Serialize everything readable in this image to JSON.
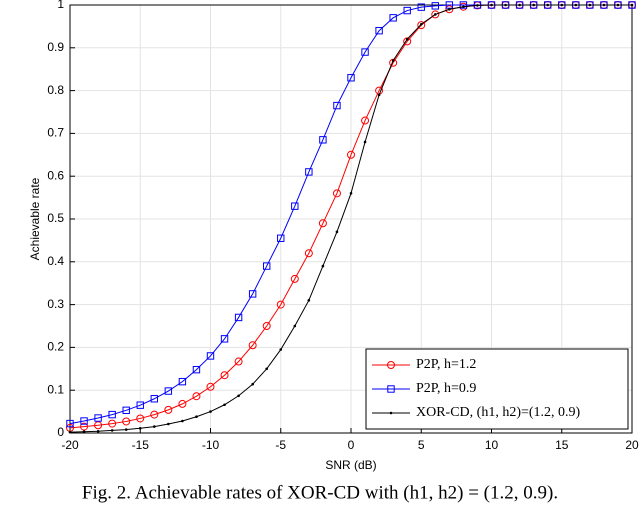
{
  "chart_data": {
    "type": "line",
    "xlabel": "SNR (dB)",
    "ylabel": "Achievable rate",
    "caption": "Fig. 2.  Achievable rates of XOR-CD with (h1, h2) = (1.2, 0.9).",
    "x": [
      -20,
      -19,
      -18,
      -17,
      -16,
      -15,
      -14,
      -13,
      -12,
      -11,
      -10,
      -9,
      -8,
      -7,
      -6,
      -5,
      -4,
      -3,
      -2,
      -1,
      0,
      1,
      2,
      3,
      4,
      5,
      6,
      7,
      8,
      9,
      10,
      11,
      12,
      13,
      14,
      15,
      16,
      17,
      18,
      19,
      20
    ],
    "series": [
      {
        "name": "P2P, h=1.2",
        "color": "#ff0000",
        "marker": "circle",
        "values": [
          0.012,
          0.015,
          0.018,
          0.022,
          0.027,
          0.034,
          0.043,
          0.054,
          0.068,
          0.086,
          0.108,
          0.135,
          0.167,
          0.205,
          0.25,
          0.3,
          0.36,
          0.42,
          0.49,
          0.56,
          0.65,
          0.73,
          0.8,
          0.865,
          0.915,
          0.953,
          0.978,
          0.99,
          0.996,
          0.999,
          1,
          1,
          1,
          1,
          1,
          1,
          1,
          1,
          1,
          1,
          1
        ]
      },
      {
        "name": "P2P, h=0.9",
        "color": "#0000ff",
        "marker": "square",
        "values": [
          0.022,
          0.028,
          0.035,
          0.043,
          0.053,
          0.065,
          0.08,
          0.098,
          0.12,
          0.148,
          0.18,
          0.22,
          0.27,
          0.325,
          0.39,
          0.455,
          0.53,
          0.61,
          0.685,
          0.765,
          0.83,
          0.89,
          0.94,
          0.97,
          0.987,
          0.995,
          0.998,
          1,
          1,
          1,
          1,
          1,
          1,
          1,
          1,
          1,
          1,
          1,
          1,
          1,
          1
        ]
      },
      {
        "name": "XOR-CD, (h1, h2)=(1.2, 0.9)",
        "color": "#000000",
        "marker": "dot",
        "values": [
          0.002,
          0.003,
          0.004,
          0.006,
          0.008,
          0.011,
          0.015,
          0.021,
          0.028,
          0.038,
          0.05,
          0.066,
          0.087,
          0.114,
          0.15,
          0.195,
          0.25,
          0.31,
          0.39,
          0.47,
          0.56,
          0.68,
          0.79,
          0.87,
          0.92,
          0.955,
          0.978,
          0.99,
          0.996,
          0.999,
          1,
          1,
          1,
          1,
          1,
          1,
          1,
          1,
          1,
          1,
          1
        ]
      }
    ],
    "xlim": [
      -20,
      20
    ],
    "xticks": [
      -20,
      -15,
      -10,
      -5,
      0,
      5,
      10,
      15,
      20
    ],
    "ylim": [
      0,
      1
    ],
    "yticks": [
      0,
      0.1,
      0.2,
      0.3,
      0.4,
      0.5,
      0.6,
      0.7,
      0.8,
      0.9,
      1
    ],
    "grid": true,
    "legend": "lower right"
  }
}
